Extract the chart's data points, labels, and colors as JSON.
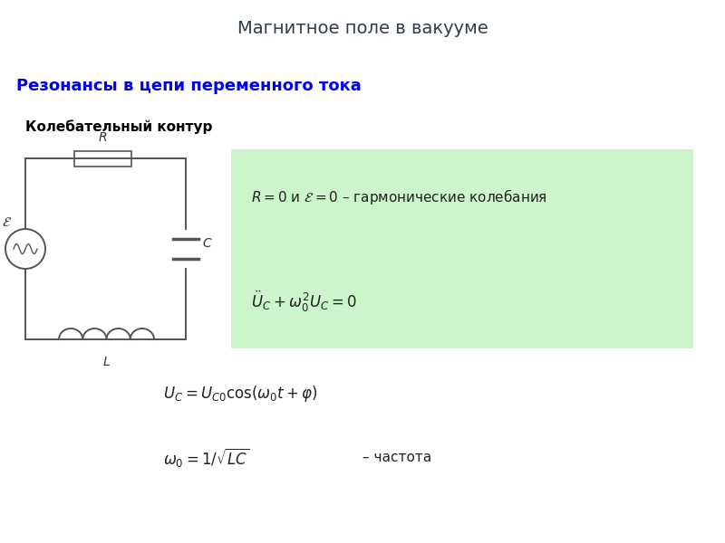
{
  "title": "Магнитное поле в вакууме",
  "title_bg": "#aed6d8",
  "subtitle": "Резонансы в цепи переменного тока",
  "subtitle_color": "#0000ee",
  "section_title": "Колебательный контур",
  "green_box_color": "#ccf5cc",
  "green_box_text1": "$R = 0$ и $\\mathcal{E} = 0$ – гармонические колебания",
  "green_box_text2": "$\\ddot{U}_C + \\omega_0^2 U_C = 0$",
  "formula1": "$U_C = U_{C0}\\cos(\\omega_0 t + \\varphi)$",
  "formula2": "$\\omega_0 = 1/\\sqrt{LC}$",
  "formula2_suffix": "– частота",
  "bg_color": "#ffffff",
  "circuit_color": "#555555"
}
